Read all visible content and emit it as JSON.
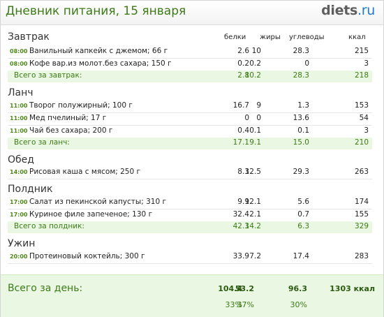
{
  "header": {
    "title": "Дневник питания, 15 января",
    "logo_main": "diets",
    "logo_tld": ".ru"
  },
  "columns": {
    "proteins": "белки",
    "fats": "жиры",
    "carbs": "углеводы",
    "kcal": "ккал"
  },
  "meals": [
    {
      "name": "Завтрак",
      "items": [
        {
          "time": "08:00",
          "food": "Ванильный капкейк с джемом; 66 г",
          "p": "2.6",
          "f": "10",
          "c": "28.3",
          "k": "215"
        },
        {
          "time": "08:00",
          "food": "Кофе вар.из молот.без сахара; 150 г",
          "p": "0.2",
          "f": "0.2",
          "c": "0",
          "k": "3"
        }
      ],
      "total": {
        "label": "Всего за завтрак:",
        "p": "2.8",
        "f": "10.2",
        "c": "28.3",
        "k": "218"
      }
    },
    {
      "name": "Ланч",
      "items": [
        {
          "time": "11:00",
          "food": "Творог полужирный; 100 г",
          "p": "16.7",
          "f": "9",
          "c": "1.3",
          "k": "153"
        },
        {
          "time": "11:00",
          "food": "Мед пчелиный; 17 г",
          "p": "0",
          "f": "0",
          "c": "13.6",
          "k": "54"
        },
        {
          "time": "11:00",
          "food": "Чай без сахара; 200 г",
          "p": "0.4",
          "f": "0.1",
          "c": "0.1",
          "k": "3"
        }
      ],
      "total": {
        "label": "Всего за ланч:",
        "p": "17.1",
        "f": "9.1",
        "c": "15.0",
        "k": "210"
      }
    },
    {
      "name": "Обед",
      "items": [
        {
          "time": "14:00",
          "food": "Рисовая каша с мясом; 250 г",
          "p": "8.3",
          "f": "12.5",
          "c": "29.3",
          "k": "263"
        }
      ]
    },
    {
      "name": "Полдник",
      "items": [
        {
          "time": "17:00",
          "food": "Салат из пекинской капусты; 310 г",
          "p": "9.9",
          "f": "12.1",
          "c": "5.6",
          "k": "174"
        },
        {
          "time": "17:00",
          "food": "Куриное филе запеченое; 130 г",
          "p": "32.4",
          "f": "2.1",
          "c": "0.7",
          "k": "155"
        }
      ],
      "total": {
        "label": "Всего за полдник:",
        "p": "42.3",
        "f": "14.2",
        "c": "6.3",
        "k": "329"
      }
    },
    {
      "name": "Ужин",
      "items": [
        {
          "time": "20:00",
          "food": "Протеиновый коктейль; 300 г",
          "p": "33.9",
          "f": "7.2",
          "c": "17.4",
          "k": "283"
        }
      ]
    }
  ],
  "day_total": {
    "label": "Всего за день:",
    "p": "104.4",
    "f": "53.2",
    "c": "96.3",
    "k": "1303 ккал",
    "p_pct": "33%",
    "f_pct": "37%",
    "c_pct": "30%"
  },
  "colors": {
    "accent_green": "#3c7a16",
    "total_bg": "#e9f7e3",
    "logo_blue": "#1d7ad2",
    "logo_gray": "#5e5e5e"
  }
}
